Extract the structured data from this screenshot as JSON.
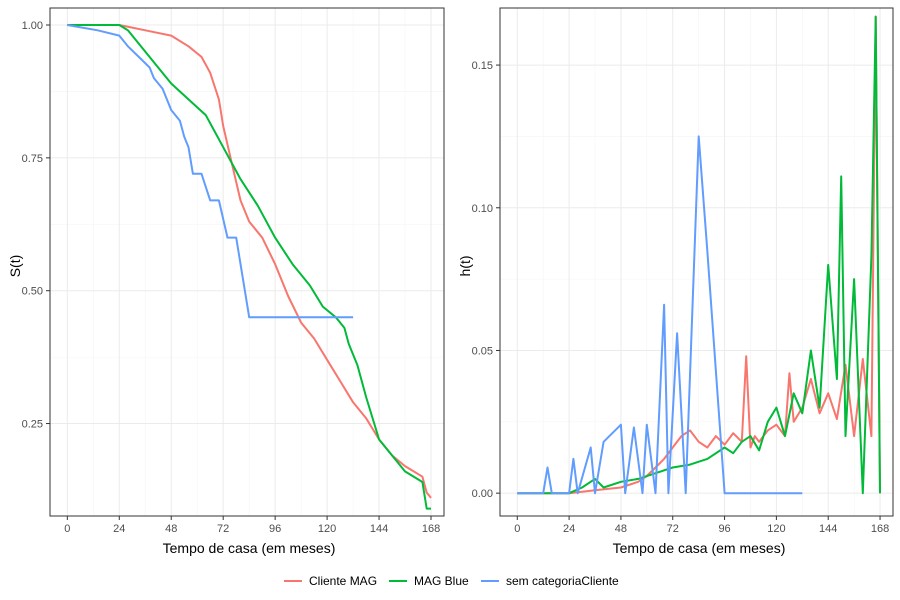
{
  "chart_data": [
    {
      "type": "line",
      "xlabel": "Tempo de casa (em meses)",
      "ylabel": "S(t)",
      "xlim": [
        -8,
        174
      ],
      "ylim": [
        0.076,
        1.032
      ],
      "xticks": [
        0,
        24,
        48,
        72,
        96,
        120,
        144,
        168
      ],
      "yticks": [
        0.25,
        0.5,
        0.75,
        1.0
      ],
      "ytick_labels": [
        "0.25",
        "0.50",
        "0.75",
        "1.00"
      ],
      "grid": true,
      "series": [
        {
          "name": "Cliente MAG",
          "color": "#F8766D",
          "x": [
            0,
            24,
            36,
            48,
            56,
            62,
            66,
            70,
            72,
            76,
            80,
            84,
            90,
            96,
            102,
            108,
            114,
            120,
            126,
            132,
            138,
            144,
            150,
            156,
            160,
            164,
            166,
            168
          ],
          "y": [
            1.0,
            1.0,
            0.99,
            0.98,
            0.96,
            0.94,
            0.91,
            0.86,
            0.81,
            0.74,
            0.67,
            0.63,
            0.6,
            0.55,
            0.49,
            0.44,
            0.41,
            0.37,
            0.33,
            0.29,
            0.26,
            0.22,
            0.19,
            0.17,
            0.16,
            0.15,
            0.12,
            0.11
          ]
        },
        {
          "name": "MAG Blue",
          "color": "#00BA38",
          "x": [
            0,
            10,
            18,
            24,
            28,
            34,
            40,
            48,
            56,
            64,
            72,
            80,
            88,
            96,
            104,
            112,
            118,
            124,
            128,
            130,
            134,
            138,
            144,
            150,
            156,
            164,
            166,
            168
          ],
          "y": [
            1.0,
            1.0,
            1.0,
            1.0,
            0.99,
            0.96,
            0.93,
            0.89,
            0.86,
            0.83,
            0.77,
            0.71,
            0.66,
            0.6,
            0.55,
            0.51,
            0.47,
            0.45,
            0.43,
            0.4,
            0.36,
            0.3,
            0.22,
            0.19,
            0.16,
            0.14,
            0.09,
            0.09
          ]
        },
        {
          "name": "sem categoriaCliente",
          "color": "#619CFF",
          "x": [
            0,
            14,
            24,
            28,
            33,
            38,
            40,
            44,
            48,
            52,
            54,
            56,
            58,
            62,
            66,
            70,
            74,
            78,
            84,
            88,
            96,
            104,
            112,
            120,
            124,
            132
          ],
          "y": [
            1.0,
            0.99,
            0.98,
            0.96,
            0.94,
            0.92,
            0.9,
            0.88,
            0.84,
            0.82,
            0.79,
            0.77,
            0.72,
            0.72,
            0.67,
            0.67,
            0.6,
            0.6,
            0.45,
            0.45,
            0.45,
            0.45,
            0.45,
            0.45,
            0.45,
            0.45
          ]
        }
      ]
    },
    {
      "type": "line",
      "xlabel": "Tempo de casa (em meses)",
      "ylabel": "h(t)",
      "xlim": [
        -8,
        174
      ],
      "ylim": [
        -0.008,
        0.17
      ],
      "xticks": [
        0,
        24,
        48,
        72,
        96,
        120,
        144,
        168
      ],
      "yticks": [
        0.0,
        0.05,
        0.1,
        0.15
      ],
      "ytick_labels": [
        "0.00",
        "0.05",
        "0.10",
        "0.15"
      ],
      "grid": true,
      "series": [
        {
          "name": "Cliente MAG",
          "color": "#F8766D",
          "x": [
            0,
            24,
            36,
            48,
            56,
            60,
            64,
            68,
            72,
            76,
            80,
            84,
            88,
            92,
            96,
            100,
            104,
            106,
            108,
            110,
            112,
            116,
            120,
            124,
            126,
            128,
            132,
            136,
            140,
            144,
            148,
            152,
            156,
            160,
            164,
            166,
            168
          ],
          "y": [
            0.0,
            0.0,
            0.001,
            0.002,
            0.004,
            0.006,
            0.009,
            0.012,
            0.016,
            0.02,
            0.022,
            0.018,
            0.016,
            0.02,
            0.017,
            0.021,
            0.018,
            0.048,
            0.016,
            0.02,
            0.018,
            0.022,
            0.024,
            0.02,
            0.042,
            0.025,
            0.03,
            0.04,
            0.028,
            0.035,
            0.026,
            0.045,
            0.02,
            0.047,
            0.02,
            0.167,
            0.0
          ]
        },
        {
          "name": "MAG Blue",
          "color": "#00BA38",
          "x": [
            0,
            24,
            30,
            36,
            40,
            48,
            56,
            64,
            72,
            80,
            88,
            96,
            100,
            104,
            108,
            112,
            116,
            120,
            124,
            128,
            132,
            136,
            140,
            144,
            148,
            150,
            152,
            156,
            160,
            164,
            166,
            168
          ],
          "y": [
            0.0,
            0.0,
            0.002,
            0.005,
            0.002,
            0.004,
            0.005,
            0.007,
            0.009,
            0.01,
            0.012,
            0.016,
            0.014,
            0.018,
            0.02,
            0.015,
            0.025,
            0.03,
            0.02,
            0.035,
            0.028,
            0.05,
            0.03,
            0.08,
            0.04,
            0.111,
            0.02,
            0.075,
            0.0,
            0.083,
            0.167,
            0.0
          ]
        },
        {
          "name": "sem categoriaCliente",
          "color": "#619CFF",
          "x": [
            0,
            12,
            14,
            16,
            24,
            26,
            28,
            34,
            36,
            40,
            48,
            50,
            54,
            58,
            60,
            64,
            68,
            70,
            74,
            78,
            84,
            88,
            96,
            98,
            104,
            108,
            120,
            124,
            132
          ],
          "y": [
            0.0,
            0.0,
            0.009,
            0.0,
            0.0,
            0.012,
            0.0,
            0.016,
            0.0,
            0.018,
            0.024,
            0.0,
            0.023,
            0.0,
            0.024,
            0.0,
            0.066,
            0.0,
            0.056,
            0.0,
            0.125,
            0.085,
            0.0,
            0.0,
            0.0,
            0.0,
            0.0,
            0.0,
            0.0
          ]
        }
      ]
    }
  ],
  "legend": {
    "position": "bottom",
    "items": [
      {
        "label": "Cliente MAG",
        "color": "#F8766D"
      },
      {
        "label": "MAG Blue",
        "color": "#00BA38"
      },
      {
        "label": "sem categoriaCliente",
        "color": "#619CFF"
      }
    ]
  }
}
